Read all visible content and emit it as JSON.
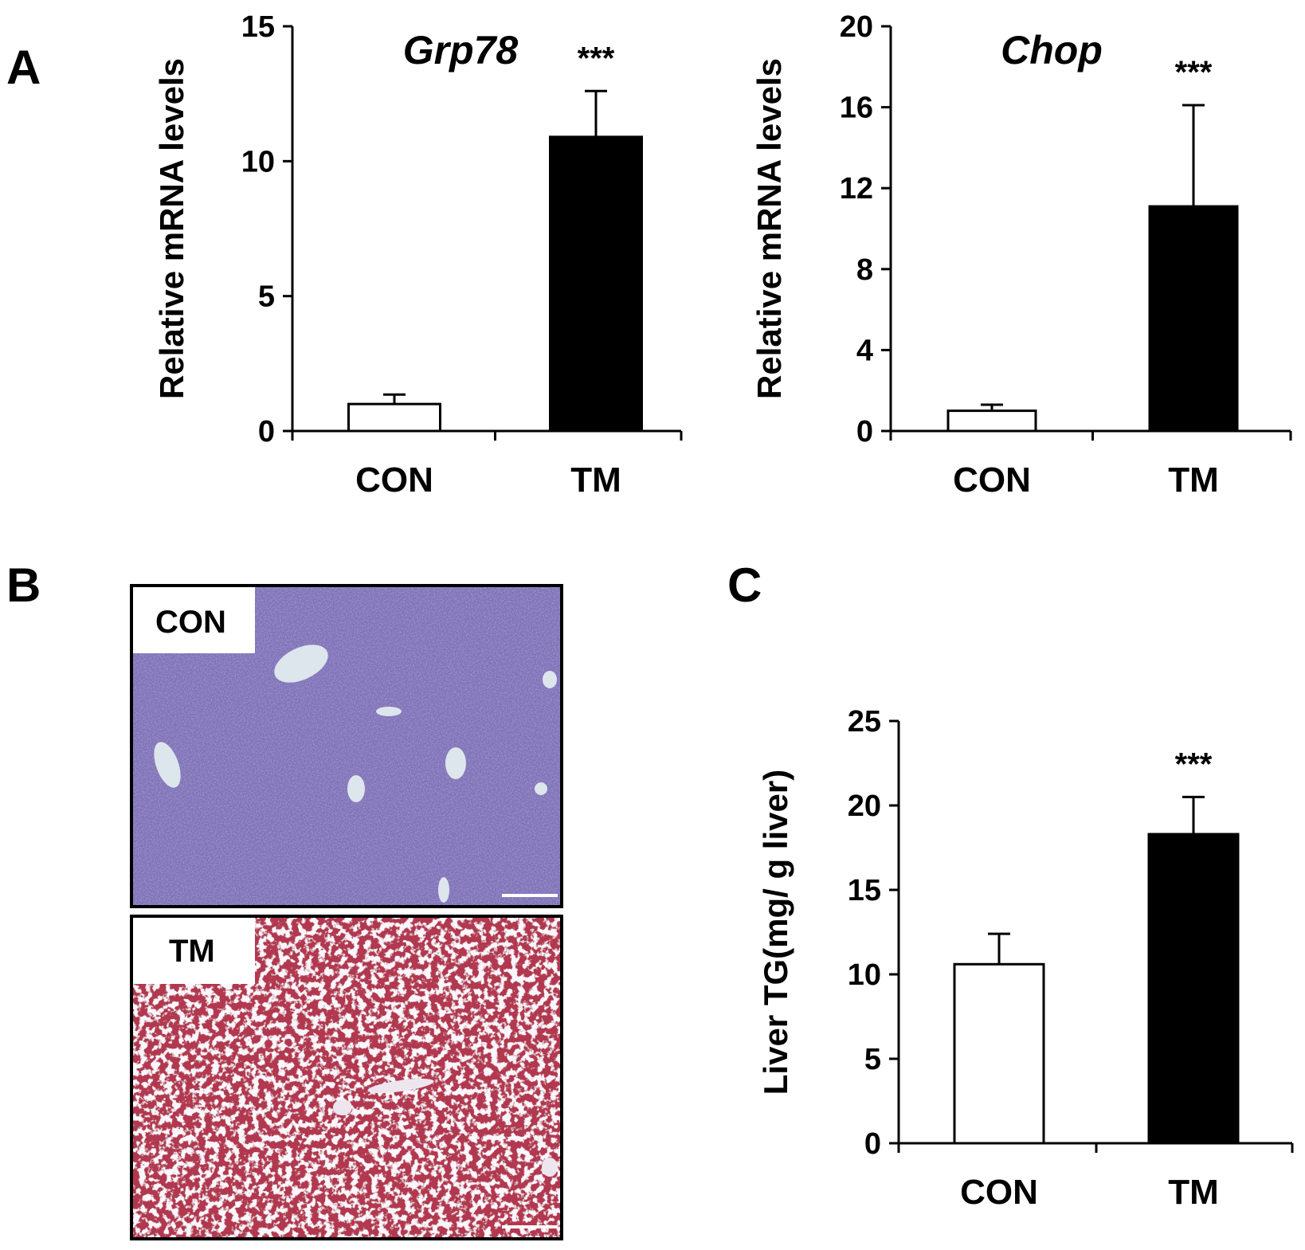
{
  "panels": {
    "a": "A",
    "b": "B",
    "c": "C"
  },
  "micrographs": [
    {
      "label": "CON",
      "stain": "#7f72b8"
    },
    {
      "label": "TM",
      "stain": "#b2374f"
    }
  ],
  "chart_data": [
    {
      "type": "bar",
      "panel": "A",
      "title": "Grp78",
      "ylabel": "Relative mRNA levels",
      "xlabel": "",
      "categories": [
        "CON",
        "TM"
      ],
      "values": [
        1.0,
        10.9
      ],
      "errors": [
        0.35,
        1.7
      ],
      "significance": [
        "",
        "***"
      ],
      "yticks": [
        0,
        5,
        10,
        15
      ],
      "ylim": [
        0,
        15
      ],
      "bar_colors": [
        "#ffffff",
        "#000000"
      ]
    },
    {
      "type": "bar",
      "panel": "A",
      "title": "Chop",
      "ylabel": "Relative mRNA levels",
      "xlabel": "",
      "categories": [
        "CON",
        "TM"
      ],
      "values": [
        1.0,
        11.1
      ],
      "errors": [
        0.3,
        5.0
      ],
      "significance": [
        "",
        "***"
      ],
      "yticks": [
        0,
        4,
        8,
        12,
        16,
        20
      ],
      "ylim": [
        0,
        20
      ],
      "bar_colors": [
        "#ffffff",
        "#000000"
      ]
    },
    {
      "type": "bar",
      "panel": "C",
      "title": "",
      "ylabel": "Liver TG(mg/ g liver)",
      "xlabel": "",
      "categories": [
        "CON",
        "TM"
      ],
      "values": [
        10.6,
        18.3
      ],
      "errors": [
        1.8,
        2.2
      ],
      "significance": [
        "",
        "***"
      ],
      "yticks": [
        0,
        5,
        10,
        15,
        20,
        25
      ],
      "ylim": [
        0,
        25
      ],
      "bar_colors": [
        "#ffffff",
        "#000000"
      ]
    }
  ]
}
